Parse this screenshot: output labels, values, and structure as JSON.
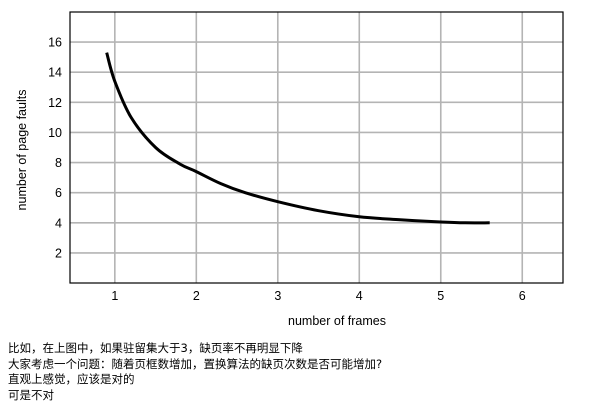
{
  "chart_data": {
    "type": "line",
    "xlabel": "number of frames",
    "ylabel": "number of page faults",
    "x_ticks": [
      1,
      2,
      3,
      4,
      5,
      6
    ],
    "y_ticks": [
      2,
      4,
      6,
      8,
      10,
      12,
      14,
      16
    ],
    "xlim": [
      0.45,
      6.5
    ],
    "ylim": [
      0,
      18
    ],
    "grid": true,
    "series": [
      {
        "x": [
          0.9,
          1.0,
          1.2,
          1.5,
          1.8,
          2.0,
          2.3,
          2.6,
          3.0,
          3.5,
          4.0,
          4.5,
          5.0,
          5.3,
          5.6
        ],
        "y": [
          15.3,
          13.4,
          11.0,
          9.0,
          7.9,
          7.4,
          6.6,
          6.0,
          5.4,
          4.8,
          4.4,
          4.2,
          4.05,
          4.0,
          4.0
        ]
      }
    ]
  },
  "caption": [
    "比如，在上图中，如果驻留集大于3，缺页率不再明显下降",
    "大家考虑一个问题：随着页框数增加，置换算法的缺页次数是否可能增加?",
    "直观上感觉，应该是对的",
    "可是不对"
  ]
}
